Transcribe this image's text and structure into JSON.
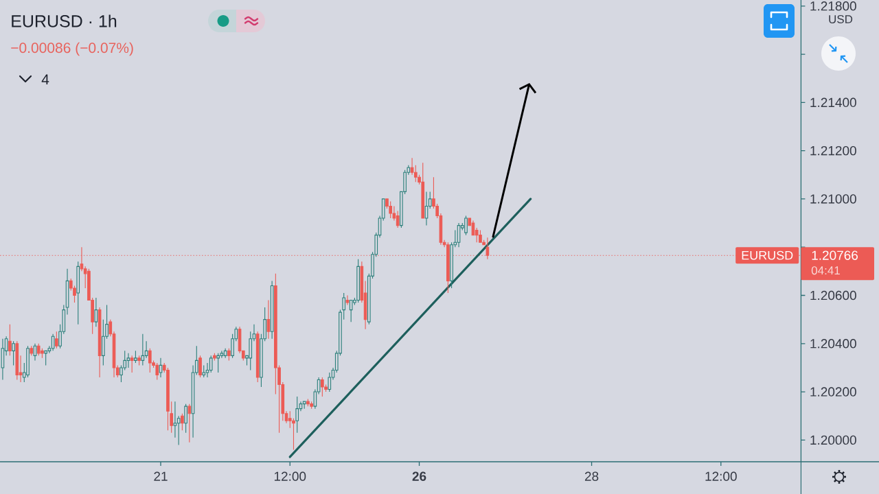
{
  "chart_data": {
    "type": "candlestick",
    "title": "EURUSD · 1h",
    "subtitle": "−0.00086 (−0.07%)",
    "ylabel": "USD",
    "categories": [
      null,
      null,
      null,
      null,
      null,
      null,
      null,
      null,
      null,
      null,
      null,
      null,
      null,
      null,
      null,
      null,
      null,
      null,
      null,
      null,
      null,
      null,
      null,
      null,
      null,
      null,
      null,
      null,
      null,
      null,
      null,
      null,
      null,
      null,
      null,
      null,
      null,
      null,
      null,
      null,
      null,
      null,
      null,
      null,
      "21",
      null,
      null,
      null,
      null,
      null,
      null,
      null,
      null,
      null,
      null,
      null,
      null,
      null,
      null,
      null,
      null,
      null,
      null,
      null,
      null,
      null,
      null,
      null,
      null,
      null,
      null,
      null,
      null,
      null,
      null,
      null,
      null,
      null,
      null,
      null,
      "12:00",
      null,
      null,
      null,
      null,
      null,
      null,
      null,
      null,
      null,
      null,
      null,
      null,
      null,
      null,
      null,
      null,
      null,
      null,
      null,
      null,
      null,
      null,
      null,
      null,
      null,
      null,
      null,
      null,
      null,
      null,
      null,
      null,
      null,
      null,
      null,
      "**26**",
      null,
      null,
      null,
      null,
      null,
      null,
      null,
      null,
      null,
      null,
      null,
      null,
      null,
      null,
      null,
      null,
      null,
      null,
      null,
      null,
      null,
      null,
      null,
      null,
      null,
      null,
      null,
      null,
      null,
      null,
      null,
      null,
      null,
      null,
      null,
      null,
      null,
      null,
      null,
      null,
      null,
      null,
      null,
      null,
      null,
      null,
      null,
      "28",
      null,
      null,
      null,
      null,
      null,
      null,
      null,
      null,
      null,
      null,
      null,
      null,
      null,
      null,
      null,
      null,
      null,
      null,
      null,
      null,
      null,
      null,
      null,
      null,
      null,
      null,
      null,
      null,
      null,
      null,
      null,
      null,
      null,
      null,
      null,
      "12:00",
      null,
      null,
      null,
      null,
      null,
      null,
      null,
      null,
      null,
      null,
      null,
      null,
      null,
      null,
      null,
      null,
      null,
      null,
      null,
      null,
      null,
      null
    ],
    "ohlc": [
      [
        1.203,
        1.2042,
        1.2025,
        1.2038
      ],
      [
        1.2037,
        1.2043,
        1.2035,
        1.2042
      ],
      [
        1.2041,
        1.2048,
        1.2035,
        1.2037
      ],
      [
        1.2037,
        1.2041,
        1.2031,
        1.204
      ],
      [
        1.204,
        1.2041,
        1.2025,
        1.2027
      ],
      [
        1.2028,
        1.2035,
        1.2024,
        1.2027
      ],
      [
        1.2026,
        1.2032,
        1.2024,
        1.2028
      ],
      [
        1.2027,
        1.2039,
        1.2026,
        1.2038
      ],
      [
        1.2038,
        1.2039,
        1.2035,
        1.2036
      ],
      [
        1.2035,
        1.204,
        1.2033,
        1.2039
      ],
      [
        1.2039,
        1.204,
        1.2035,
        1.2036
      ],
      [
        1.2037,
        1.2038,
        1.2034,
        1.2036
      ],
      [
        1.2036,
        1.2037,
        1.2031,
        1.2037
      ],
      [
        1.2037,
        1.2039,
        1.2036,
        1.2038
      ],
      [
        1.2038,
        1.2044,
        1.2037,
        1.2043
      ],
      [
        1.2042,
        1.2045,
        1.2038,
        1.2039
      ],
      [
        1.2039,
        1.2048,
        1.2038,
        1.2045
      ],
      [
        1.2045,
        1.2056,
        1.2044,
        1.2054
      ],
      [
        1.2055,
        1.2071,
        1.2052,
        1.2066
      ],
      [
        1.2066,
        1.2067,
        1.2062,
        1.2063
      ],
      [
        1.2063,
        1.2064,
        1.2057,
        1.206
      ],
      [
        1.2061,
        1.2074,
        1.2048,
        1.2072
      ],
      [
        1.2073,
        1.208,
        1.207,
        1.2071
      ],
      [
        1.2071,
        1.2072,
        1.2063,
        1.2069
      ],
      [
        1.207,
        1.2071,
        1.2058,
        1.2058
      ],
      [
        1.2058,
        1.2059,
        1.2044,
        1.2049
      ],
      [
        1.2049,
        1.2059,
        1.2047,
        1.2054
      ],
      [
        1.2054,
        1.2055,
        1.2026,
        1.2035
      ],
      [
        1.2035,
        1.205,
        1.2031,
        1.2043
      ],
      [
        1.2043,
        1.2056,
        1.2042,
        1.2048
      ],
      [
        1.2049,
        1.205,
        1.2043,
        1.2044
      ],
      [
        1.2044,
        1.2045,
        1.2026,
        1.203
      ],
      [
        1.203,
        1.2031,
        1.2026,
        1.2027
      ],
      [
        1.2027,
        1.2031,
        1.2024,
        1.203
      ],
      [
        1.203,
        1.2037,
        1.2029,
        1.2033
      ],
      [
        1.2033,
        1.2036,
        1.203,
        1.2034
      ],
      [
        1.2034,
        1.2035,
        1.2028,
        1.2033
      ],
      [
        1.2033,
        1.2037,
        1.2032,
        1.2034
      ],
      [
        1.2034,
        1.2035,
        1.2031,
        1.2033
      ],
      [
        1.2033,
        1.2044,
        1.2031,
        1.2035
      ],
      [
        1.2035,
        1.2041,
        1.2034,
        1.2037
      ],
      [
        1.2037,
        1.2038,
        1.2028,
        1.2032
      ],
      [
        1.2032,
        1.2033,
        1.203,
        1.2031
      ],
      [
        1.2031,
        1.2032,
        1.2025,
        1.2027
      ],
      [
        1.2028,
        1.2034,
        1.2026,
        1.2031
      ],
      [
        1.2031,
        1.2032,
        1.2028,
        1.2029
      ],
      [
        1.2029,
        1.203,
        1.2004,
        1.2012
      ],
      [
        1.2011,
        1.2016,
        1.2003,
        1.2006
      ],
      [
        1.2006,
        1.2016,
        1.2001,
        1.2007
      ],
      [
        1.2007,
        1.201,
        1.1998,
        1.2009
      ],
      [
        1.201,
        1.2011,
        1.2004,
        1.2007
      ],
      [
        1.2007,
        1.2015,
        1.2003,
        1.2014
      ],
      [
        1.2014,
        1.2015,
        1.1999,
        1.2011
      ],
      [
        1.2011,
        1.2031,
        1.2001,
        1.2028
      ],
      [
        1.2028,
        1.2039,
        1.2027,
        1.2033
      ],
      [
        1.2034,
        1.2035,
        1.2026,
        1.2027
      ],
      [
        1.2027,
        1.2031,
        1.2026,
        1.2028
      ],
      [
        1.2028,
        1.2032,
        1.2026,
        1.2029
      ],
      [
        1.2029,
        1.2035,
        1.2028,
        1.2034
      ],
      [
        1.2035,
        1.2036,
        1.2033,
        1.2034
      ],
      [
        1.2034,
        1.2036,
        1.2028,
        1.2035
      ],
      [
        1.2035,
        1.2037,
        1.2034,
        1.2036
      ],
      [
        1.2035,
        1.2038,
        1.2034,
        1.2037
      ],
      [
        1.2037,
        1.2038,
        1.2033,
        1.2035
      ],
      [
        1.2035,
        1.2044,
        1.2034,
        1.2042
      ],
      [
        1.2042,
        1.2047,
        1.2041,
        1.2046
      ],
      [
        1.2046,
        1.2047,
        1.2036,
        1.2037
      ],
      [
        1.2037,
        1.2037,
        1.2033,
        1.2034
      ],
      [
        1.2034,
        1.2035,
        1.2031,
        1.2035
      ],
      [
        1.2034,
        1.2045,
        1.2029,
        1.2042
      ],
      [
        1.2042,
        1.2048,
        1.2041,
        1.2044
      ],
      [
        1.2044,
        1.2045,
        1.2024,
        1.2026
      ],
      [
        1.2026,
        1.2044,
        1.2022,
        1.2042
      ],
      [
        1.2042,
        1.2055,
        1.2041,
        1.205
      ],
      [
        1.205,
        1.2058,
        1.2042,
        1.2045
      ],
      [
        1.2045,
        1.2066,
        1.2042,
        1.2064
      ],
      [
        1.2064,
        1.2069,
        1.2019,
        1.203
      ],
      [
        1.203,
        1.2031,
        1.2003,
        1.2023
      ],
      [
        1.2023,
        1.2024,
        1.2008,
        1.2011
      ],
      [
        1.2011,
        1.2012,
        1.2007,
        1.2008
      ],
      [
        1.2009,
        1.2012,
        1.2005,
        1.2008
      ],
      [
        1.2008,
        1.2009,
        1.1996,
        1.2007
      ],
      [
        1.2008,
        1.2018,
        1.2003,
        1.2013
      ],
      [
        1.2013,
        1.2016,
        1.2012,
        1.2015
      ],
      [
        1.2015,
        1.2016,
        1.2013,
        1.2016
      ],
      [
        1.2016,
        1.2017,
        1.2014,
        1.2015
      ],
      [
        1.2015,
        1.2016,
        1.2013,
        1.2014
      ],
      [
        1.2014,
        1.2021,
        1.2013,
        1.202
      ],
      [
        1.202,
        1.2026,
        1.2019,
        1.2025
      ],
      [
        1.2025,
        1.2026,
        1.2018,
        1.2022
      ],
      [
        1.2022,
        1.2023,
        1.202,
        1.2021
      ],
      [
        1.2021,
        1.2028,
        1.202,
        1.2026
      ],
      [
        1.2026,
        1.203,
        1.2025,
        1.2029
      ],
      [
        1.2029,
        1.2037,
        1.2028,
        1.2036
      ],
      [
        1.2036,
        1.2054,
        1.2035,
        1.2053
      ],
      [
        1.2054,
        1.2061,
        1.205,
        1.2059
      ],
      [
        1.2058,
        1.206,
        1.2056,
        1.2057
      ],
      [
        1.2054,
        1.2058,
        1.2049,
        1.2058
      ],
      [
        1.2057,
        1.2059,
        1.2056,
        1.2058
      ],
      [
        1.2058,
        1.2075,
        1.2057,
        1.2072
      ],
      [
        1.2072,
        1.2074,
        1.2057,
        1.2058
      ],
      [
        1.2061,
        1.2066,
        1.2046,
        1.205
      ],
      [
        1.2049,
        1.2069,
        1.2048,
        1.2068
      ],
      [
        1.2068,
        1.2078,
        1.2067,
        1.2077
      ],
      [
        1.2077,
        1.2086,
        1.2076,
        1.2085
      ],
      [
        1.2085,
        1.2093,
        1.2084,
        1.2092
      ],
      [
        1.2092,
        1.21,
        1.2091,
        1.21
      ],
      [
        1.21,
        1.21,
        1.2096,
        1.2097
      ],
      [
        1.2097,
        1.2099,
        1.2092,
        1.2094
      ],
      [
        1.2094,
        1.2097,
        1.2091,
        1.2092
      ],
      [
        1.2093,
        1.2095,
        1.2088,
        1.2089
      ],
      [
        1.2089,
        1.2103,
        1.2088,
        1.2103
      ],
      [
        1.2103,
        1.2112,
        1.2102,
        1.2111
      ],
      [
        1.2111,
        1.2114,
        1.211,
        1.2113
      ],
      [
        1.2113,
        1.2117,
        1.211,
        1.2111
      ],
      [
        1.2111,
        1.2114,
        1.2107,
        1.2109
      ],
      [
        1.2109,
        1.211,
        1.2106,
        1.2107
      ],
      [
        1.2107,
        1.2115,
        1.2092,
        1.2092
      ],
      [
        1.2092,
        1.2103,
        1.2089,
        1.2097
      ],
      [
        1.2097,
        1.2103,
        1.2096,
        1.21
      ],
      [
        1.21,
        1.2109,
        1.2096,
        1.2097
      ],
      [
        1.2097,
        1.2098,
        1.2092,
        1.2093
      ],
      [
        1.2093,
        1.2094,
        1.2081,
        1.2082
      ],
      [
        1.2082,
        1.2083,
        1.208,
        1.2081
      ],
      [
        1.2081,
        1.2082,
        1.2061,
        1.2066
      ],
      [
        1.2066,
        1.2082,
        1.2063,
        1.2081
      ],
      [
        1.2081,
        1.2087,
        1.208,
        1.2082
      ],
      [
        1.2082,
        1.209,
        1.208,
        1.2089
      ],
      [
        1.2088,
        1.209,
        1.2087,
        1.2089
      ],
      [
        1.2086,
        1.2093,
        1.2085,
        1.2092
      ],
      [
        1.2092,
        1.2092,
        1.2089,
        1.2089
      ],
      [
        1.209,
        1.2091,
        1.2085,
        1.2085
      ],
      [
        1.2087,
        1.2088,
        1.2082,
        1.2085
      ],
      [
        1.2085,
        1.2087,
        1.2082,
        1.2082
      ],
      [
        1.2082,
        1.2083,
        1.2081,
        1.2081
      ],
      [
        1.208,
        1.2084,
        1.2075,
        1.20766
      ],
      null,
      null,
      null,
      null,
      null,
      null,
      null,
      null,
      null,
      null,
      null,
      null,
      null,
      null,
      null,
      null,
      null,
      null,
      null,
      null,
      null,
      null,
      null,
      null,
      null,
      null,
      null,
      null,
      null,
      null,
      null,
      null,
      null,
      null,
      null,
      null,
      null,
      null,
      null,
      null,
      null,
      null,
      null,
      null,
      null,
      null,
      null,
      null,
      null,
      null,
      null,
      null,
      null,
      null,
      null,
      null,
      null,
      null,
      null,
      null,
      null,
      null,
      null,
      null,
      null,
      null,
      null,
      null,
      null,
      null,
      null,
      null,
      null,
      null,
      null,
      null,
      null,
      null,
      null,
      null,
      null,
      null,
      null,
      null,
      null,
      null,
      null
    ],
    "colors": [
      "#2b7f7a",
      "#2b7f7a",
      "#ec5b55",
      "#2b7f7a",
      "#ec5b55",
      "#ec5b55",
      "#2b7f7a",
      "#2b7f7a",
      "#ec5b55",
      "#2b7f7a",
      "#ec5b55",
      "#ec5b55",
      "#2b7f7a",
      "#2b7f7a",
      "#2b7f7a",
      "#ec5b55",
      "#2b7f7a",
      "#2b7f7a",
      "#2b7f7a",
      "#ec5b55",
      "#ec5b55",
      "#2b7f7a",
      "#ec5b55",
      "#ec5b55",
      "#ec5b55",
      "#ec5b55",
      "#2b7f7a",
      "#ec5b55",
      "#2b7f7a",
      "#2b7f7a",
      "#ec5b55",
      "#ec5b55",
      "#ec5b55",
      "#2b7f7a",
      "#2b7f7a",
      "#2b7f7a",
      "#ec5b55",
      "#2b7f7a",
      "#ec5b55",
      "#2b7f7a",
      "#2b7f7a",
      "#ec5b55",
      "#ec5b55",
      "#ec5b55",
      "#2b7f7a",
      "#ec5b55",
      "#ec5b55",
      "#ec5b55",
      "#2b7f7a",
      "#2b7f7a",
      "#ec5b55",
      "#2b7f7a",
      "#ec5b55",
      "#2b7f7a",
      "#2b7f7a",
      "#ec5b55",
      "#2b7f7a",
      "#2b7f7a",
      "#2b7f7a",
      "#ec5b55",
      "#2b7f7a",
      "#2b7f7a",
      "#2b7f7a",
      "#ec5b55",
      "#2b7f7a",
      "#2b7f7a",
      "#ec5b55",
      "#ec5b55",
      "#2b7f7a",
      "#2b7f7a",
      "#2b7f7a",
      "#ec5b55",
      "#2b7f7a",
      "#2b7f7a",
      "#ec5b55",
      "#2b7f7a",
      "#ec5b55",
      "#ec5b55",
      "#ec5b55",
      "#ec5b55",
      "#ec5b55",
      "#ec5b55",
      "#2b7f7a",
      "#2b7f7a",
      "#2b7f7a",
      "#ec5b55",
      "#ec5b55",
      "#2b7f7a",
      "#2b7f7a",
      "#ec5b55",
      "#ec5b55",
      "#2b7f7a",
      "#2b7f7a",
      "#2b7f7a",
      "#2b7f7a",
      "#2b7f7a",
      "#ec5b55",
      "#2b7f7a",
      "#2b7f7a",
      "#2b7f7a",
      "#ec5b55",
      "#ec5b55",
      "#2b7f7a",
      "#2b7f7a",
      "#2b7f7a",
      "#2b7f7a",
      "#2b7f7a",
      "#ec5b55",
      "#ec5b55",
      "#ec5b55",
      "#ec5b55",
      "#2b7f7a",
      "#2b7f7a",
      "#2b7f7a",
      "#ec5b55",
      "#ec5b55",
      "#ec5b55",
      "#ec5b55",
      "#2b7f7a",
      "#2b7f7a",
      "#ec5b55",
      "#ec5b55",
      "#ec5b55",
      "#ec5b55",
      "#ec5b55",
      "#2b7f7a",
      "#2b7f7a",
      "#2b7f7a",
      "#2b7f7a",
      "#2b7f7a",
      "#ec5b55",
      "#ec5b55",
      "#ec5b55",
      "#ec5b55",
      "#ec5b55",
      "#ec5b55",
      null,
      null,
      null,
      null,
      null,
      null,
      null,
      null,
      null,
      null,
      null,
      null,
      null,
      null,
      null,
      null,
      null,
      null,
      null,
      null,
      null,
      null,
      null,
      null,
      null,
      null,
      null,
      null,
      null,
      null,
      null,
      null,
      null,
      null,
      null,
      null,
      null,
      null,
      null,
      null,
      null,
      null,
      null,
      null,
      null,
      null,
      null,
      null,
      null,
      null,
      null,
      null,
      null,
      null,
      null,
      null,
      null,
      null,
      null,
      null,
      null,
      null,
      null,
      null,
      null,
      null,
      null,
      null,
      null,
      null,
      null,
      null,
      null,
      null,
      null,
      null,
      null,
      null,
      null,
      null,
      null,
      null,
      null,
      null,
      null,
      null,
      null
    ],
    "series": [
      {
        "type": "line",
        "color": "#1d5f5c",
        "values": [
          null,
          null,
          null,
          null,
          null,
          null,
          null,
          null,
          null,
          null,
          null,
          null,
          null,
          null,
          null,
          null,
          null,
          null,
          null,
          null,
          null,
          null,
          null,
          null,
          null,
          null,
          null,
          null,
          null,
          null,
          null,
          null,
          null,
          null,
          null,
          null,
          null,
          null,
          null,
          null,
          null,
          null,
          null,
          null,
          null,
          null,
          null,
          null,
          null,
          null,
          null,
          null,
          null,
          null,
          null,
          null,
          null,
          null,
          null,
          null,
          null,
          null,
          null,
          null,
          null,
          null,
          null,
          null,
          null,
          null,
          null,
          null,
          null,
          null,
          null,
          null,
          null,
          null,
          null,
          null,
          1.1993,
          null,
          null,
          null,
          null,
          null,
          null,
          null,
          null,
          null,
          null,
          null,
          null,
          null,
          null,
          null,
          null,
          null,
          null,
          null,
          null,
          null,
          null,
          null,
          null,
          null,
          null,
          null,
          null,
          null,
          null,
          null,
          null,
          null,
          null,
          null,
          null,
          null,
          null,
          null,
          null,
          null,
          null,
          null,
          null,
          null,
          null,
          null,
          null,
          null,
          null,
          null,
          null,
          null,
          null,
          null,
          null,
          null,
          null,
          null,
          null,
          null,
          null,
          null,
          null,
          null,
          null,
          1.21,
          null,
          null,
          null,
          null,
          null,
          null,
          null,
          null,
          null,
          null,
          null,
          null,
          null,
          null,
          null,
          null,
          null,
          null,
          null,
          null,
          null,
          null,
          null,
          null,
          null,
          null,
          null,
          null,
          null,
          null,
          null,
          null,
          null,
          null,
          null,
          null,
          null,
          null,
          null,
          null,
          null,
          null,
          null,
          null,
          null,
          null,
          null,
          null,
          null,
          null,
          null,
          null,
          null,
          null,
          null,
          null,
          null,
          null,
          null,
          null,
          null,
          null,
          null,
          null,
          null,
          null,
          null,
          null,
          null,
          null,
          null,
          null,
          null,
          null,
          null
        ]
      }
    ],
    "ylim": [
      1.1991,
      1.21825
    ],
    "yticks": [
      {
        "value": 1.2,
        "label": "1.20000"
      },
      {
        "value": 1.202,
        "label": "1.20200"
      },
      {
        "value": 1.204,
        "label": "1.20400"
      },
      {
        "value": 1.206,
        "label": "1.20600"
      },
      {
        "value": 1.208,
        "label": null
      },
      {
        "value": 1.21,
        "label": "1.21000"
      },
      {
        "value": 1.212,
        "label": "1.21200"
      },
      {
        "value": 1.214,
        "label": "1.21400"
      },
      {
        "value": 1.216,
        "label": null
      },
      {
        "value": 1.218,
        "label": "1.21800"
      }
    ],
    "ref_lines": [
      {
        "axis": "y",
        "value": 1.20766,
        "label": "EURUSD",
        "color": "#ec5b55",
        "line_style": "dotted"
      }
    ],
    "annotations": [
      "4",
      "1.20766",
      "04:41"
    ]
  }
}
